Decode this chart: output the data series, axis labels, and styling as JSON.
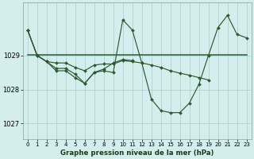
{
  "title": "Graphe pression niveau de la mer (hPa)",
  "bg_color": "#d4eeed",
  "grid_color": "#b0d8d8",
  "line_color": "#2d5a2d",
  "x_ticks": [
    0,
    1,
    2,
    3,
    4,
    5,
    6,
    7,
    8,
    9,
    10,
    11,
    12,
    13,
    14,
    15,
    16,
    17,
    18,
    19,
    20,
    21,
    22,
    23
  ],
  "y_ticks": [
    1027,
    1028,
    1029
  ],
  "ylim": [
    1026.55,
    1030.55
  ],
  "xlim": [
    -0.5,
    23.5
  ],
  "line1": {
    "x": [
      0,
      1,
      2,
      3,
      4,
      5,
      6,
      7,
      8,
      9,
      10,
      11,
      12,
      13,
      14,
      15,
      16,
      17,
      18,
      19,
      20,
      21,
      22,
      23
    ],
    "y": [
      1029.75,
      1029.0,
      1028.82,
      1028.55,
      1028.55,
      1028.35,
      1028.18,
      1028.5,
      1028.55,
      1028.5,
      1030.05,
      1029.75,
      1028.78,
      1027.72,
      1027.38,
      1027.32,
      1027.32,
      1027.6,
      1028.15,
      1029.0,
      1029.82,
      1030.18,
      1029.62,
      1029.52
    ]
  },
  "line2": {
    "x": [
      0,
      23
    ],
    "y": [
      1029.02,
      1029.02
    ]
  },
  "line3": {
    "x": [
      0,
      1,
      2,
      3,
      4,
      5,
      6,
      7,
      8,
      9,
      10,
      11,
      12,
      13,
      14,
      15,
      16,
      17,
      18,
      19
    ],
    "y": [
      1029.75,
      1029.0,
      1028.82,
      1028.78,
      1028.78,
      1028.65,
      1028.55,
      1028.72,
      1028.75,
      1028.75,
      1028.85,
      1028.82,
      1028.78,
      1028.72,
      1028.65,
      1028.55,
      1028.48,
      1028.42,
      1028.35,
      1028.28
    ]
  },
  "line4": {
    "x": [
      0,
      1,
      2,
      3,
      4,
      5,
      6,
      7,
      8,
      9,
      10,
      11
    ],
    "y": [
      1029.75,
      1029.0,
      1028.82,
      1028.62,
      1028.62,
      1028.45,
      1028.18,
      1028.5,
      1028.6,
      1028.78,
      1028.88,
      1028.85
    ]
  }
}
